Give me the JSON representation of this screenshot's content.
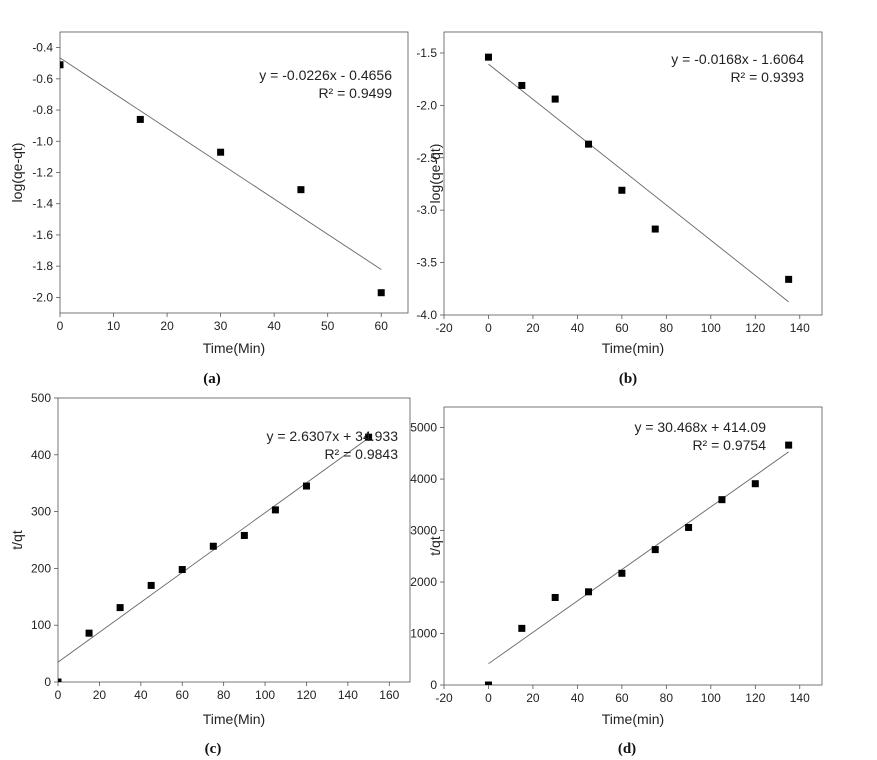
{
  "chart_data": [
    {
      "id": "a",
      "type": "scatter",
      "caption": "(a)",
      "xlabel": "Time(Min)",
      "ylabel": "log(qe-qt)",
      "xlim": [
        0,
        65
      ],
      "ylim": [
        -2.1,
        -0.3
      ],
      "xticks": [
        "0",
        "10",
        "20",
        "30",
        "40",
        "50",
        "60"
      ],
      "yticks": [
        "-2.0",
        "-1.8",
        "-1.6",
        "-1.4",
        "-1.2",
        "-1.0",
        "-0.8",
        "-0.6",
        "-0.4"
      ],
      "points": [
        {
          "x": 0,
          "y": -0.51
        },
        {
          "x": 15,
          "y": -0.86
        },
        {
          "x": 30,
          "y": -1.07
        },
        {
          "x": 45,
          "y": -1.31
        },
        {
          "x": 60,
          "y": -1.97
        }
      ],
      "fit": {
        "slope": -0.0226,
        "intercept": -0.4656,
        "x_range": [
          0,
          60
        ]
      },
      "equation": "y = -0.0226x - 0.4656",
      "r2": "R² = 0.9499",
      "grid": false
    },
    {
      "id": "b",
      "type": "scatter",
      "caption": "(b)",
      "xlabel": "Time(min)",
      "ylabel": "log(qe-qt)",
      "xlim": [
        -20,
        150
      ],
      "ylim": [
        -4.0,
        -1.3
      ],
      "xticks": [
        "-20",
        "0",
        "20",
        "40",
        "60",
        "80",
        "100",
        "120",
        "140"
      ],
      "yticks": [
        "-4.0",
        "-3.5",
        "-3.0",
        "-2.5",
        "-2.0",
        "-1.5"
      ],
      "points": [
        {
          "x": 0,
          "y": -1.54
        },
        {
          "x": 15,
          "y": -1.81
        },
        {
          "x": 30,
          "y": -1.94
        },
        {
          "x": 45,
          "y": -2.37
        },
        {
          "x": 60,
          "y": -2.81
        },
        {
          "x": 75,
          "y": -3.18
        },
        {
          "x": 135,
          "y": -3.66
        }
      ],
      "fit": {
        "slope": -0.0168,
        "intercept": -1.6064,
        "x_range": [
          0,
          135
        ]
      },
      "equation": "y = -0.0168x - 1.6064",
      "r2": "R² = 0.9393",
      "grid": false
    },
    {
      "id": "c",
      "type": "scatter",
      "caption": "(c)",
      "xlabel": "Time(Min)",
      "ylabel": "t/qt",
      "xlim": [
        0,
        170
      ],
      "ylim": [
        0,
        500
      ],
      "xticks": [
        "0",
        "20",
        "40",
        "60",
        "80",
        "100",
        "120",
        "140",
        "160"
      ],
      "yticks": [
        "0",
        "100",
        "200",
        "300",
        "400",
        "500"
      ],
      "points": [
        {
          "x": 0,
          "y": 0
        },
        {
          "x": 15,
          "y": 86
        },
        {
          "x": 30,
          "y": 131
        },
        {
          "x": 45,
          "y": 170
        },
        {
          "x": 60,
          "y": 198
        },
        {
          "x": 75,
          "y": 239
        },
        {
          "x": 90,
          "y": 258
        },
        {
          "x": 105,
          "y": 303
        },
        {
          "x": 120,
          "y": 345
        },
        {
          "x": 150,
          "y": 431
        }
      ],
      "fit": {
        "slope": 2.6307,
        "intercept": 34.933,
        "x_range": [
          0,
          150
        ]
      },
      "equation": "y = 2.6307x + 34.933",
      "r2": "R² = 0.9843",
      "grid": false
    },
    {
      "id": "d",
      "type": "scatter",
      "caption": "(d)",
      "xlabel": "Time(min)",
      "ylabel": "t/qt",
      "xlim": [
        -20,
        150
      ],
      "ylim": [
        0,
        5400
      ],
      "xticks": [
        "-20",
        "0",
        "20",
        "40",
        "60",
        "80",
        "100",
        "120",
        "140"
      ],
      "yticks": [
        "0",
        "1000",
        "2000",
        "3000",
        "4000",
        "5000"
      ],
      "points": [
        {
          "x": 0,
          "y": 0
        },
        {
          "x": 15,
          "y": 1100
        },
        {
          "x": 30,
          "y": 1700
        },
        {
          "x": 45,
          "y": 1810
        },
        {
          "x": 60,
          "y": 2170
        },
        {
          "x": 75,
          "y": 2630
        },
        {
          "x": 90,
          "y": 3060
        },
        {
          "x": 105,
          "y": 3600
        },
        {
          "x": 120,
          "y": 3910
        },
        {
          "x": 135,
          "y": 4660
        }
      ],
      "fit": {
        "slope": 30.468,
        "intercept": 414.09,
        "x_range": [
          0,
          135
        ]
      },
      "equation": "y = 30.468x + 414.09",
      "r2": "R² = 0.9754",
      "grid": false
    }
  ]
}
